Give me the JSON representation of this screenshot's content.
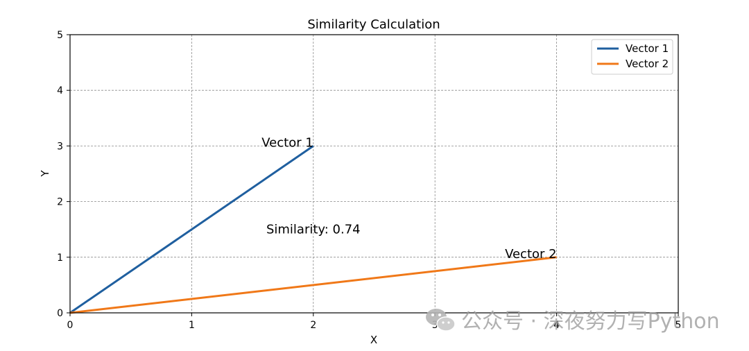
{
  "chart_data": {
    "type": "line",
    "title": "Similarity Calculation",
    "xlabel": "X",
    "ylabel": "Y",
    "xlim": [
      0,
      5
    ],
    "ylim": [
      0,
      5
    ],
    "xticks": [
      "0",
      "1",
      "2",
      "3",
      "4",
      "5"
    ],
    "yticks": [
      "0",
      "1",
      "2",
      "3",
      "4",
      "5"
    ],
    "grid": true,
    "legend_position": "top-right",
    "series": [
      {
        "name": "Vector 1",
        "color": "#1f5f9f",
        "points": [
          [
            0,
            0
          ],
          [
            2,
            3
          ]
        ],
        "end_label": "Vector 1"
      },
      {
        "name": "Vector 2",
        "color": "#f07818",
        "points": [
          [
            0,
            0
          ],
          [
            4,
            1
          ]
        ],
        "end_label": "Vector 2"
      }
    ],
    "annotations": [
      {
        "text": "Similarity: 0.74",
        "x": 2.0,
        "y": 1.5
      }
    ]
  },
  "watermark": {
    "text": "公众号 · 深夜努力写Python",
    "icon": "wechat-icon"
  }
}
